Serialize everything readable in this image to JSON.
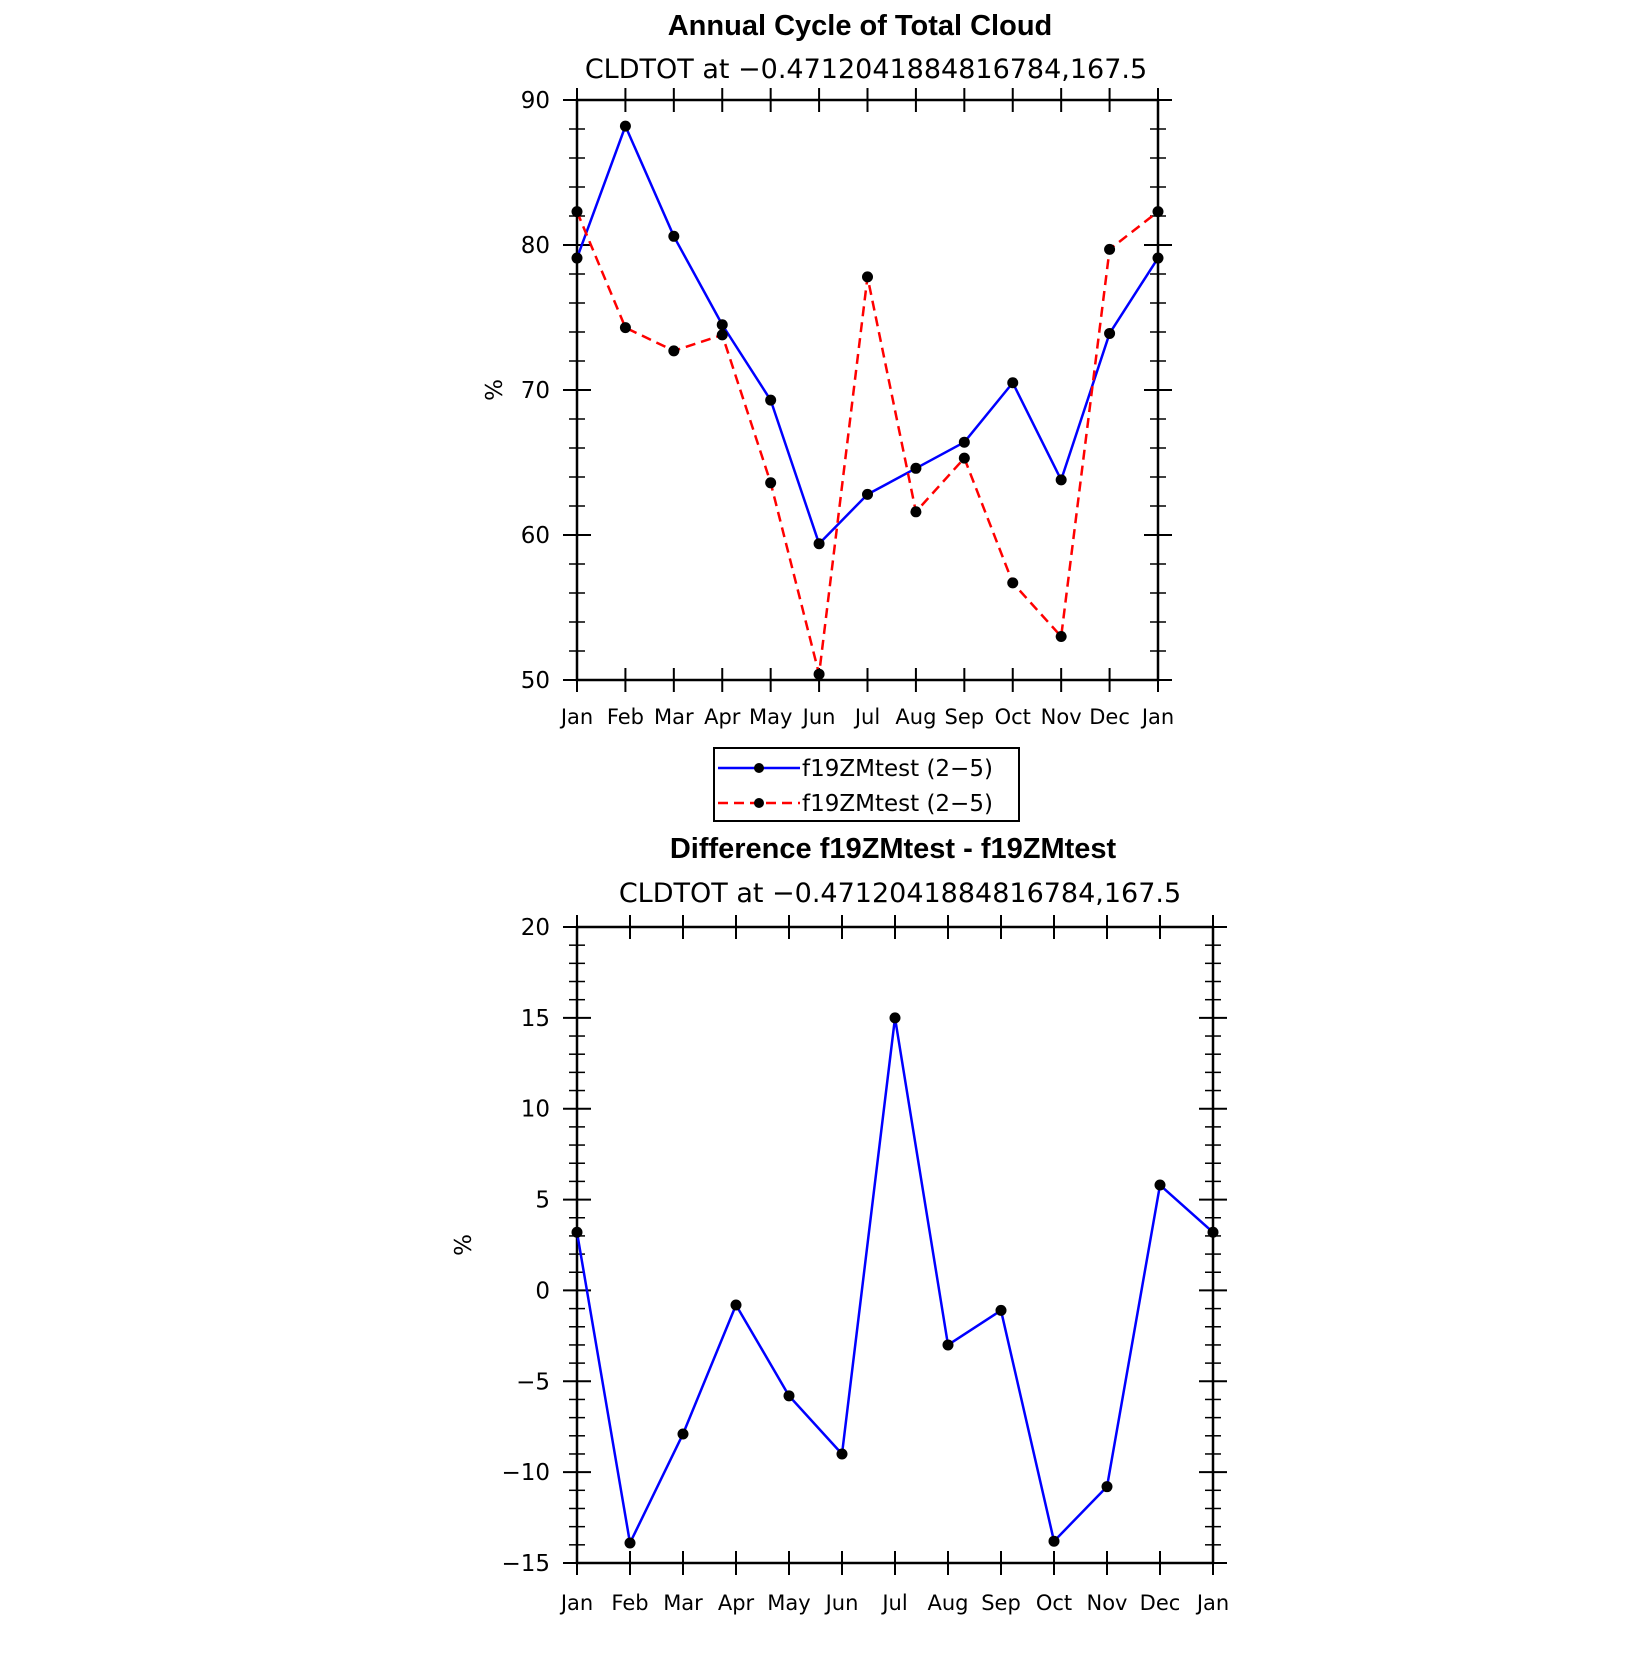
{
  "chart_data": [
    {
      "type": "line",
      "title": "Annual Cycle of Total Cloud",
      "subtitle": "CLDTOT at −0.4712041884816784,167.5",
      "xlabel": "",
      "ylabel": "%",
      "categories": [
        "Jan",
        "Feb",
        "Mar",
        "Apr",
        "May",
        "Jun",
        "Jul",
        "Aug",
        "Sep",
        "Oct",
        "Nov",
        "Dec",
        "Jan"
      ],
      "ylim": [
        50,
        90
      ],
      "yticks": [
        50,
        60,
        70,
        80,
        90
      ],
      "grid": false,
      "legend": "bottom",
      "series": [
        {
          "name": "f19ZMtest (2−5)",
          "style": "solid",
          "color": "#0000ff",
          "marker": "circle",
          "values": [
            79.1,
            88.2,
            80.6,
            74.5,
            69.3,
            59.4,
            62.8,
            64.6,
            66.4,
            70.5,
            63.8,
            73.9,
            79.1
          ]
        },
        {
          "name": "f19ZMtest (2−5)",
          "style": "dashed",
          "color": "#ff0000",
          "marker": "circle",
          "values": [
            82.3,
            74.3,
            72.7,
            73.8,
            63.6,
            50.4,
            77.8,
            61.6,
            65.3,
            56.7,
            53.0,
            79.7,
            82.3
          ]
        }
      ]
    },
    {
      "type": "line",
      "title": "Difference f19ZMtest - f19ZMtest",
      "subtitle": "CLDTOT at −0.4712041884816784,167.5",
      "xlabel": "",
      "ylabel": "%",
      "categories": [
        "Jan",
        "Feb",
        "Mar",
        "Apr",
        "May",
        "Jun",
        "Jul",
        "Aug",
        "Sep",
        "Oct",
        "Nov",
        "Dec",
        "Jan"
      ],
      "ylim": [
        -15,
        20
      ],
      "yticks": [
        -15,
        -10,
        -5,
        0,
        5,
        10,
        15,
        20
      ],
      "ytick_labels": [
        "−15",
        "−10",
        "−5",
        "0",
        "5",
        "10",
        "15",
        "20"
      ],
      "grid": false,
      "series": [
        {
          "style": "solid",
          "color": "#0000ff",
          "marker": "circle",
          "values": [
            3.2,
            -13.9,
            -7.9,
            -0.8,
            -5.8,
            -9.0,
            15.0,
            -3.0,
            -1.1,
            -13.8,
            -10.8,
            5.8,
            3.2
          ]
        }
      ]
    }
  ]
}
